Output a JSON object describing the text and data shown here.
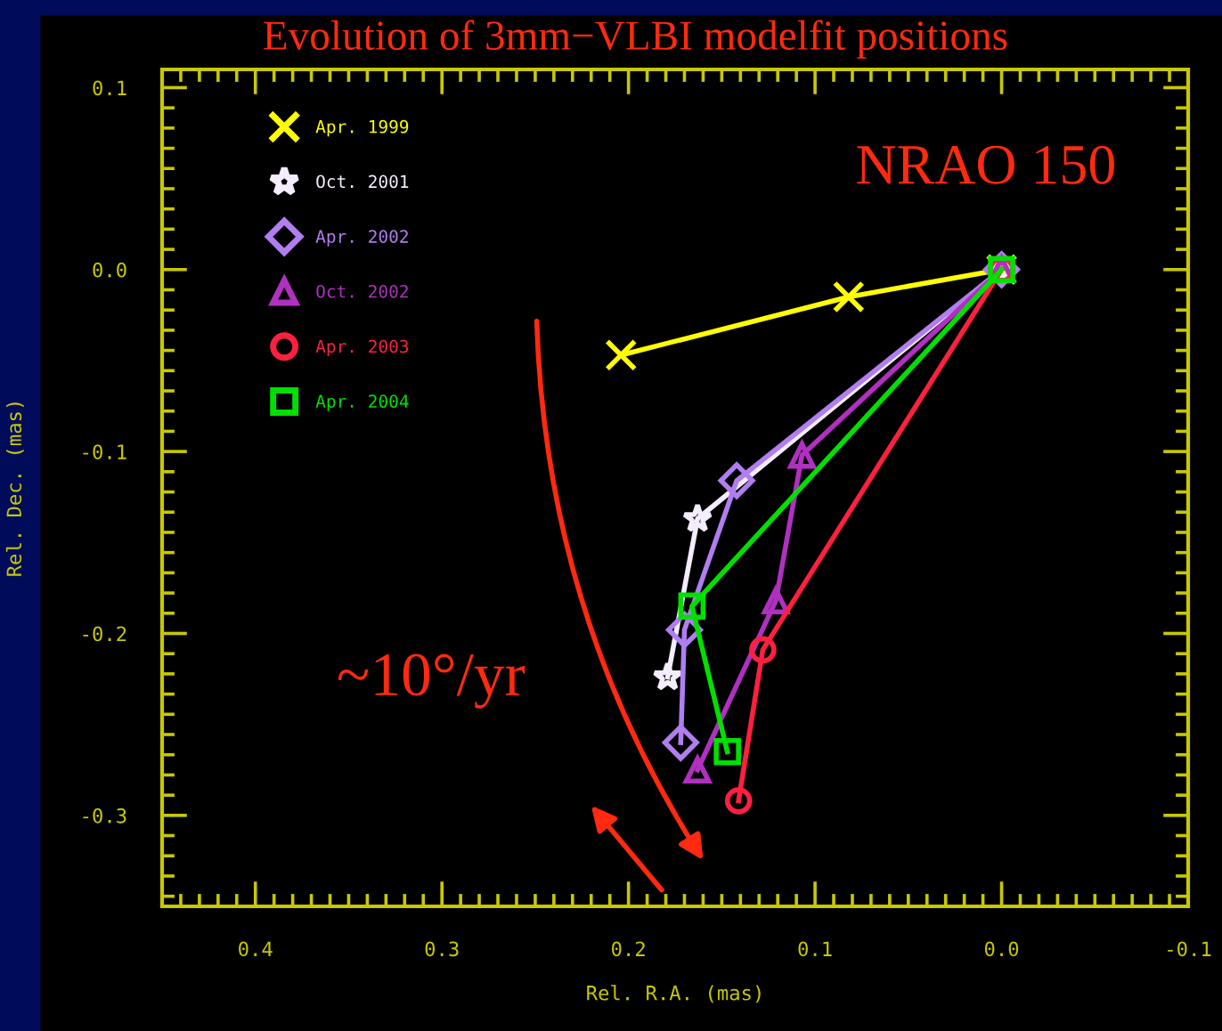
{
  "chart_data": {
    "type": "line",
    "title": "Evolution of 3mm−VLBI modelfit positions",
    "xlabel": "Rel. R.A. (mas)",
    "ylabel": "Rel. Dec. (mas)",
    "xlim": [
      0.45,
      -0.1
    ],
    "xticks": [
      0.4,
      0.3,
      0.2,
      0.1,
      {
        "value": 0,
        "label": "0.0"
      },
      -0.1
    ],
    "ylim": [
      -0.35,
      0.11
    ],
    "yticks": [
      0.1,
      {
        "value": 0,
        "label": "0.0"
      },
      -0.1,
      -0.2,
      -0.3
    ],
    "grid": false,
    "legend": "top left",
    "line_style": "solid",
    "annotations": [
      "NRAO 150",
      "~10°/yr"
    ],
    "series": [
      {
        "name": "Apr. 1999",
        "color": "#ffff00",
        "marker": "cross",
        "x": [
          0.0,
          0.082,
          0.204
        ],
        "values": [
          0.0,
          -0.015,
          -0.047
        ]
      },
      {
        "name": "Oct. 2001",
        "color": "#f4ecff",
        "marker": "star",
        "x": [
          0.0,
          0.163,
          0.179
        ],
        "values": [
          0.0,
          -0.137,
          -0.224
        ]
      },
      {
        "name": "Apr. 2002",
        "color": "#b07ef0",
        "marker": "diamond",
        "x": [
          0.0,
          0.142,
          0.17,
          0.172
        ],
        "values": [
          0.0,
          -0.116,
          -0.198,
          -0.26
        ]
      },
      {
        "name": "Oct. 2002",
        "color": "#b030c0",
        "marker": "triangle",
        "x": [
          0.0,
          0.107,
          0.121,
          0.163
        ],
        "values": [
          0.0,
          -0.102,
          -0.182,
          -0.275
        ]
      },
      {
        "name": "Apr. 2003",
        "color": "#ff2040",
        "marker": "circle",
        "x": [
          0.0,
          0.128,
          0.141
        ],
        "values": [
          0.0,
          -0.209,
          -0.292
        ]
      },
      {
        "name": "Apr. 2004",
        "color": "#00e000",
        "marker": "square",
        "x": [
          0.0,
          0.166,
          0.147
        ],
        "values": [
          0.0,
          -0.185,
          -0.265
        ]
      }
    ]
  }
}
